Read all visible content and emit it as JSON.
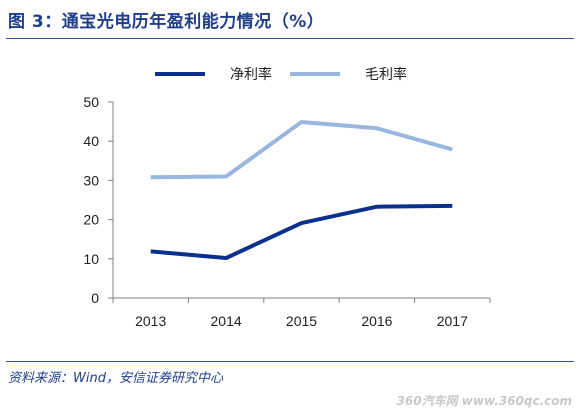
{
  "figure": {
    "title": "图 3：通宝光电历年盈利能力情况（%）",
    "source": "资料来源：Wind，安信证券研究中心",
    "watermark": "360汽车网 www.360qc.com"
  },
  "chart_data": {
    "type": "line",
    "title": "图 3：通宝光电历年盈利能力情况（%）",
    "xlabel": "",
    "ylabel": "",
    "x": [
      "2013",
      "2014",
      "2015",
      "2016",
      "2017"
    ],
    "ylim": [
      0,
      50
    ],
    "yticks": [
      0,
      10,
      20,
      30,
      40,
      50
    ],
    "grid": false,
    "legend_position": "top-center",
    "series": [
      {
        "name": "净利率",
        "color": "#0b2f8f",
        "values": [
          11.9,
          10.2,
          19.1,
          23.3,
          23.5
        ]
      },
      {
        "name": "毛利率",
        "color": "#98b6e0",
        "values": [
          30.8,
          31.0,
          44.9,
          43.3,
          37.9
        ]
      }
    ]
  }
}
